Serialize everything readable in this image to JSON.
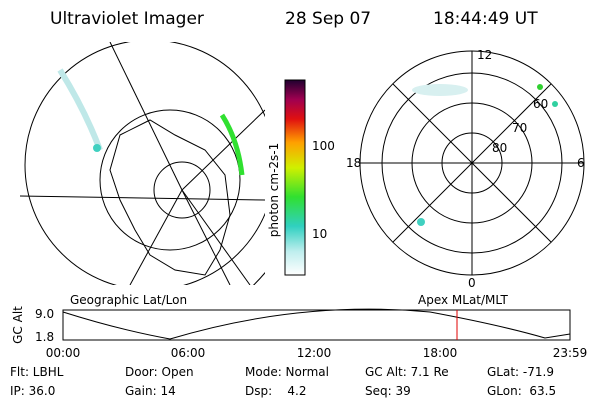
{
  "header": {
    "title": "Ultraviolet Imager",
    "date": "28 Sep 07",
    "time": "18:44:49 UT"
  },
  "colorbar": {
    "title": "photon cm-2s-1",
    "labels": [
      "100",
      "10"
    ]
  },
  "polar": {
    "mlt_labels": [
      "12",
      "18",
      "6",
      "0"
    ],
    "lat_labels": [
      "60",
      "70",
      "80"
    ]
  },
  "timeline": {
    "y_title": "GC Alt",
    "y_labels": [
      "9.0",
      "1.8"
    ],
    "left_title": "Geographic Lat/Lon",
    "right_title": "Apex MLat/MLT",
    "x_labels": [
      "00:00",
      "06:00",
      "12:00",
      "18:00",
      "23:59"
    ]
  },
  "info": {
    "rows": [
      [
        "Flt: LBHL",
        "Door: Open",
        "Mode: Normal",
        "GC Alt: 7.1 Re",
        "GLat: -71.9"
      ],
      [
        "IP: 36.0",
        "Gain: 14",
        "Dsp:    4.2",
        "Seq: 39",
        "GLon:  63.5"
      ]
    ]
  }
}
